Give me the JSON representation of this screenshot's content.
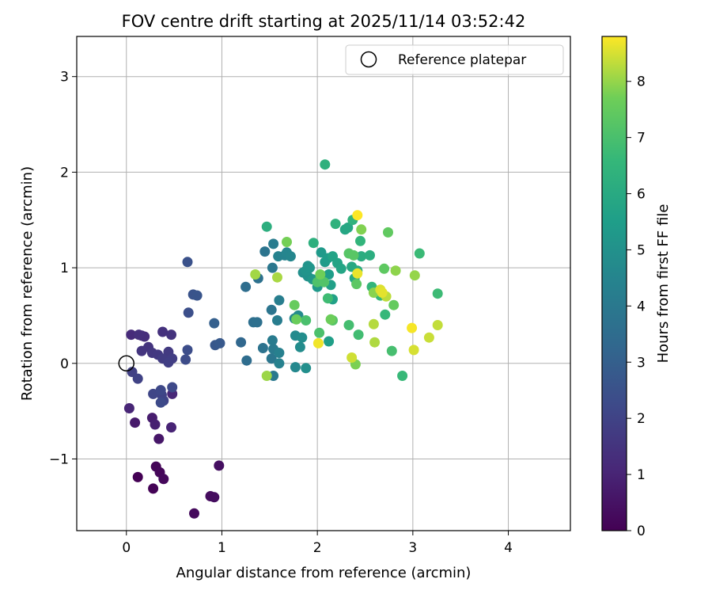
{
  "chart_data": {
    "type": "scatter",
    "title": "FOV centre drift starting at 2025/11/14 03:52:42",
    "xlabel": "Angular distance from reference (arcmin)",
    "ylabel": "Rotation from reference (arcmin)",
    "xlim": [
      -0.52,
      4.65
    ],
    "ylim": [
      -1.75,
      3.42
    ],
    "x_ticks": [
      0,
      1,
      2,
      3,
      4
    ],
    "y_ticks": [
      -1,
      0,
      1,
      2,
      3
    ],
    "x_tick_labels": [
      "0",
      "1",
      "2",
      "3",
      "4"
    ],
    "y_tick_labels": [
      "−1",
      "0",
      "1",
      "2",
      "3"
    ],
    "grid": true,
    "legend": {
      "position": "top-right",
      "entries": [
        "Reference platepar"
      ]
    },
    "reference_point": {
      "x": 0,
      "y": 0,
      "label": "Reference platepar"
    },
    "colorbar": {
      "label": "Hours from first FF file",
      "colormap": "viridis",
      "min": 0,
      "max": 8.8,
      "ticks": [
        0,
        1,
        2,
        3,
        4,
        5,
        6,
        7,
        8
      ],
      "tick_labels": [
        "0",
        "1",
        "2",
        "3",
        "4",
        "5",
        "6",
        "7",
        "8"
      ]
    },
    "points": [
      [
        0.12,
        -1.19,
        0.0
      ],
      [
        0.28,
        -1.31,
        0.05
      ],
      [
        0.31,
        -1.08,
        0.1
      ],
      [
        0.35,
        -1.14,
        0.15
      ],
      [
        0.39,
        -1.21,
        0.2
      ],
      [
        0.71,
        -1.57,
        0.25
      ],
      [
        0.88,
        -1.39,
        0.3
      ],
      [
        0.92,
        -1.4,
        0.35
      ],
      [
        0.97,
        -1.07,
        0.4
      ],
      [
        0.34,
        -0.79,
        0.6
      ],
      [
        0.09,
        -0.62,
        0.7
      ],
      [
        0.27,
        -0.57,
        0.8
      ],
      [
        0.3,
        -0.64,
        0.9
      ],
      [
        0.47,
        -0.67,
        1.0
      ],
      [
        0.03,
        -0.47,
        1.05
      ],
      [
        0.48,
        -0.32,
        1.1
      ],
      [
        0.05,
        0.3,
        1.2
      ],
      [
        0.16,
        0.29,
        1.25
      ],
      [
        0.19,
        0.28,
        1.3
      ],
      [
        0.13,
        0.3,
        1.35
      ],
      [
        0.38,
        0.33,
        1.4
      ],
      [
        0.47,
        0.3,
        1.45
      ],
      [
        0.23,
        0.17,
        1.5
      ],
      [
        0.16,
        0.13,
        1.55
      ],
      [
        0.27,
        0.11,
        1.6
      ],
      [
        0.33,
        0.09,
        1.65
      ],
      [
        0.44,
        0.12,
        1.7
      ],
      [
        0.38,
        0.05,
        1.75
      ],
      [
        0.48,
        0.05,
        1.8
      ],
      [
        0.44,
        0.01,
        1.85
      ],
      [
        0.06,
        -0.09,
        1.9
      ],
      [
        0.12,
        -0.16,
        1.95
      ],
      [
        0.37,
        -0.33,
        2.0
      ],
      [
        0.39,
        -0.39,
        2.05
      ],
      [
        0.28,
        -0.32,
        2.1
      ],
      [
        0.36,
        -0.28,
        2.15
      ],
      [
        0.48,
        -0.25,
        2.2
      ],
      [
        0.36,
        -0.41,
        2.25
      ],
      [
        0.62,
        0.04,
        2.3
      ],
      [
        0.64,
        0.14,
        2.35
      ],
      [
        0.65,
        0.53,
        2.4
      ],
      [
        0.64,
        1.06,
        2.5
      ],
      [
        0.7,
        0.72,
        2.55
      ],
      [
        0.74,
        0.71,
        2.6
      ],
      [
        0.93,
        0.19,
        2.7
      ],
      [
        0.98,
        0.21,
        2.75
      ],
      [
        0.92,
        0.42,
        3.0
      ],
      [
        1.2,
        0.22,
        3.3
      ],
      [
        1.26,
        0.03,
        3.5
      ],
      [
        1.25,
        0.8,
        3.55
      ],
      [
        1.33,
        0.43,
        3.6
      ],
      [
        1.37,
        0.43,
        3.65
      ],
      [
        1.38,
        0.89,
        3.7
      ],
      [
        1.43,
        0.16,
        3.75
      ],
      [
        1.45,
        1.17,
        3.8
      ],
      [
        1.52,
        0.56,
        3.85
      ],
      [
        1.52,
        0.05,
        3.9
      ],
      [
        1.53,
        1.0,
        3.95
      ],
      [
        1.54,
        -0.13,
        4.0
      ],
      [
        1.54,
        0.15,
        4.05
      ],
      [
        1.53,
        0.24,
        4.1
      ],
      [
        1.54,
        1.25,
        4.15
      ],
      [
        1.58,
        0.45,
        4.2
      ],
      [
        1.6,
        0.66,
        4.25
      ],
      [
        1.6,
        0.11,
        4.3
      ],
      [
        1.6,
        0.0,
        4.35
      ],
      [
        1.59,
        1.12,
        4.4
      ],
      [
        1.66,
        1.13,
        4.45
      ],
      [
        1.68,
        1.16,
        4.5
      ],
      [
        1.72,
        1.12,
        4.55
      ],
      [
        1.76,
        0.47,
        4.6
      ],
      [
        1.77,
        -0.04,
        4.65
      ],
      [
        1.77,
        0.29,
        4.7
      ],
      [
        1.8,
        0.5,
        4.75
      ],
      [
        1.82,
        0.17,
        4.8
      ],
      [
        1.84,
        0.27,
        4.85
      ],
      [
        1.88,
        -0.05,
        4.9
      ],
      [
        1.85,
        0.95,
        4.95
      ],
      [
        1.9,
        0.91,
        5.0
      ],
      [
        1.9,
        1.02,
        5.05
      ],
      [
        1.88,
        0.97,
        5.1
      ],
      [
        1.92,
        1.0,
        5.15
      ],
      [
        1.95,
        0.88,
        5.2
      ],
      [
        2.0,
        0.8,
        5.3
      ],
      [
        2.04,
        1.16,
        5.35
      ],
      [
        2.08,
        1.06,
        5.4
      ],
      [
        2.11,
        1.1,
        5.45
      ],
      [
        2.12,
        0.93,
        5.5
      ],
      [
        2.12,
        0.23,
        5.55
      ],
      [
        2.14,
        0.82,
        5.6
      ],
      [
        2.16,
        0.67,
        5.65
      ],
      [
        2.16,
        1.12,
        5.7
      ],
      [
        2.21,
        1.05,
        5.75
      ],
      [
        2.25,
        0.99,
        5.8
      ],
      [
        2.29,
        1.4,
        5.85
      ],
      [
        2.32,
        1.42,
        5.9
      ],
      [
        2.36,
        1.01,
        5.95
      ],
      [
        2.39,
        0.89,
        6.0
      ],
      [
        2.42,
        0.97,
        6.05
      ],
      [
        2.46,
        1.12,
        6.1
      ],
      [
        2.55,
        1.13,
        6.15
      ],
      [
        1.47,
        1.43,
        6.2
      ],
      [
        1.96,
        1.26,
        6.25
      ],
      [
        2.08,
        2.08,
        6.3
      ],
      [
        2.19,
        1.46,
        6.35
      ],
      [
        2.37,
        1.5,
        6.4
      ],
      [
        2.45,
        1.28,
        6.45
      ],
      [
        2.57,
        0.8,
        6.5
      ],
      [
        2.66,
        0.71,
        6.55
      ],
      [
        2.71,
        0.51,
        6.6
      ],
      [
        2.89,
        -0.13,
        6.65
      ],
      [
        3.07,
        1.15,
        6.7
      ],
      [
        3.26,
        0.73,
        6.75
      ],
      [
        2.11,
        0.68,
        6.8
      ],
      [
        2.43,
        0.3,
        6.85
      ],
      [
        2.33,
        0.4,
        6.9
      ],
      [
        2.78,
        0.13,
        6.95
      ],
      [
        1.88,
        0.45,
        7.0
      ],
      [
        2.02,
        0.32,
        7.05
      ],
      [
        2.0,
        0.85,
        7.1
      ],
      [
        2.07,
        0.85,
        7.15
      ],
      [
        2.16,
        0.45,
        7.2
      ],
      [
        2.33,
        1.15,
        7.25
      ],
      [
        2.38,
        1.13,
        7.3
      ],
      [
        2.41,
        0.83,
        7.35
      ],
      [
        2.7,
        0.99,
        7.4
      ],
      [
        2.74,
        1.37,
        7.45
      ],
      [
        2.8,
        0.61,
        7.5
      ],
      [
        1.76,
        0.61,
        7.55
      ],
      [
        1.78,
        0.46,
        7.6
      ],
      [
        2.14,
        0.46,
        7.65
      ],
      [
        2.03,
        0.93,
        7.7
      ],
      [
        1.68,
        1.27,
        7.75
      ],
      [
        2.4,
        -0.01,
        7.8
      ],
      [
        2.46,
        1.4,
        7.85
      ],
      [
        2.59,
        0.74,
        7.9
      ],
      [
        2.82,
        0.97,
        7.95
      ],
      [
        3.02,
        0.92,
        8.0
      ],
      [
        1.47,
        -0.13,
        8.05
      ],
      [
        1.35,
        0.93,
        8.1
      ],
      [
        1.58,
        0.9,
        8.15
      ],
      [
        2.6,
        0.22,
        8.2
      ],
      [
        2.59,
        0.41,
        8.25
      ],
      [
        2.72,
        0.7,
        8.3
      ],
      [
        3.26,
        0.4,
        8.35
      ],
      [
        3.17,
        0.27,
        8.4
      ],
      [
        2.36,
        0.06,
        8.45
      ],
      [
        3.01,
        0.14,
        8.5
      ],
      [
        2.66,
        0.77,
        8.55
      ],
      [
        2.68,
        0.74,
        8.6
      ],
      [
        2.42,
        0.94,
        8.65
      ],
      [
        2.01,
        0.21,
        8.7
      ],
      [
        2.99,
        0.37,
        8.75
      ],
      [
        2.42,
        1.55,
        8.8
      ]
    ]
  }
}
